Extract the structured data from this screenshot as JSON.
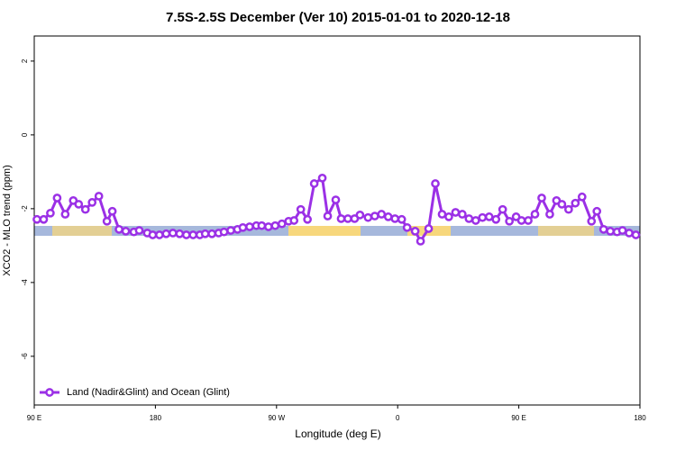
{
  "chart_data": {
    "type": "line",
    "title": "7.5S-2.5S December (Ver 10)   2015-01-01 to 2020-12-18",
    "x_label": "Longitude (deg E)",
    "y_label": "XCO2 - MLO trend (ppm)",
    "xlim": [
      90,
      540
    ],
    "xticks": [
      {
        "value": 90,
        "label": "90 E"
      },
      180,
      {
        "value": 270,
        "label": "90 W"
      },
      {
        "value": 360,
        "label": "0"
      },
      {
        "value": 450,
        "label": "90 E"
      },
      {
        "value": 540,
        "label": "180"
      }
    ],
    "ylim": [
      -7.32,
      2.68
    ],
    "yticks": [
      2,
      0,
      -2,
      -4,
      -6
    ],
    "legend_position": "bottom-left",
    "x": [
      92,
      97,
      102,
      107,
      113,
      119,
      123,
      128,
      133,
      138,
      144,
      148,
      153,
      158,
      164,
      168,
      174,
      178,
      183,
      188,
      193,
      198,
      203,
      208,
      213,
      217,
      222,
      227,
      231,
      236,
      241,
      245,
      250,
      255,
      259,
      264,
      269,
      274,
      279,
      283,
      288,
      293,
      298,
      304,
      308,
      314,
      318,
      323,
      328,
      332,
      338,
      343,
      348,
      353,
      358,
      363,
      367,
      373,
      377,
      383,
      388,
      393,
      398,
      403,
      408,
      413,
      418,
      423,
      428,
      433,
      438,
      443,
      448,
      452,
      457,
      462,
      467,
      473,
      478,
      482,
      487,
      492,
      497,
      504,
      508,
      513,
      518,
      523,
      527,
      532,
      537
    ],
    "series": [
      {
        "name": "Land (Nadir&Glint) and Ocean (Glint)",
        "color": "#9b30e6",
        "values": [
          -2.29,
          -2.29,
          -2.12,
          -1.71,
          -2.15,
          -1.78,
          -1.88,
          -2.02,
          -1.83,
          -1.66,
          -2.34,
          -2.07,
          -2.56,
          -2.61,
          -2.63,
          -2.59,
          -2.66,
          -2.71,
          -2.71,
          -2.68,
          -2.66,
          -2.68,
          -2.71,
          -2.71,
          -2.71,
          -2.68,
          -2.68,
          -2.66,
          -2.63,
          -2.59,
          -2.56,
          -2.51,
          -2.49,
          -2.46,
          -2.46,
          -2.49,
          -2.46,
          -2.41,
          -2.34,
          -2.32,
          -2.02,
          -2.29,
          -1.32,
          -1.17,
          -2.2,
          -1.76,
          -2.27,
          -2.27,
          -2.27,
          -2.17,
          -2.24,
          -2.2,
          -2.15,
          -2.22,
          -2.27,
          -2.29,
          -2.51,
          -2.61,
          -2.88,
          -2.54,
          -1.32,
          -2.15,
          -2.22,
          -2.1,
          -2.15,
          -2.27,
          -2.32,
          -2.24,
          -2.22,
          -2.29,
          -2.02,
          -2.34,
          -2.22,
          -2.32,
          -2.32,
          -2.15,
          -1.71,
          -2.15,
          -1.78,
          -1.88,
          -2.02,
          -1.85,
          -1.68,
          -2.34,
          -2.07,
          -2.56,
          -2.61,
          -2.63,
          -2.59,
          -2.66,
          -2.71
        ]
      }
    ]
  }
}
